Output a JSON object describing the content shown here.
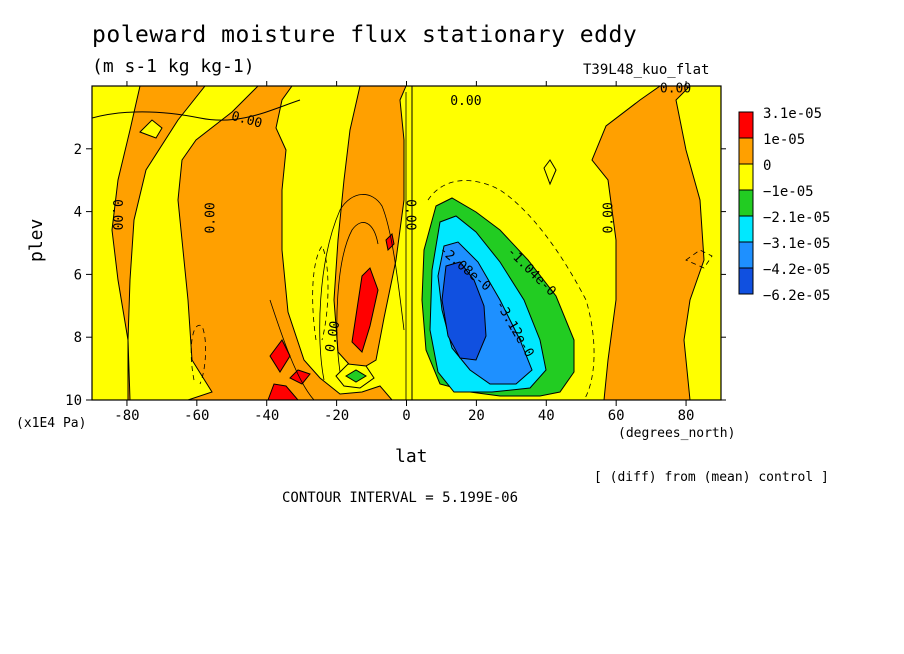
{
  "chart_data": {
    "type": "heatmap",
    "title": "poleward moisture flux stationary eddy",
    "units": "(m s-1 kg kg-1)",
    "run_label": "T39L48_kuo_flat",
    "xlabel": "lat",
    "xunits": "(degrees_north)",
    "ylabel": "plev",
    "yunits": "(x1E4 Pa)",
    "xlim": [
      -90,
      90
    ],
    "ylim": [
      10,
      0
    ],
    "xticks": [
      -80,
      -60,
      -40,
      -20,
      0,
      20,
      40,
      60,
      80
    ],
    "yticks": [
      2,
      4,
      6,
      8,
      10
    ],
    "note": "[ (diff) from (mean) control ]",
    "contour_interval": "CONTOUR INTERVAL = 5.199E-06",
    "legend": [
      {
        "label": "3.1e-05",
        "color": "#ff0000"
      },
      {
        "label": "1e-05",
        "color": "#ffa000"
      },
      {
        "label": "0",
        "color": "#ffa000"
      },
      {
        "label": "−1e-05",
        "color": "#ffff00"
      },
      {
        "label": "−2.1e-05",
        "color": "#22cc22"
      },
      {
        "label": "−3.1e-05",
        "color": "#00e8ff"
      },
      {
        "label": "−4.2e-05",
        "color": "#1e90ff"
      },
      {
        "label": "−6.2e-05",
        "color": "#1050e0"
      }
    ],
    "contour_labels": [
      {
        "text": "0.00",
        "lat": -46,
        "plev": 1.2,
        "rot": 15
      },
      {
        "text": "0.00",
        "lat": 17,
        "plev": 0.6,
        "rot": 0
      },
      {
        "text": "0.00",
        "lat": 77,
        "plev": 0.2,
        "rot": 0
      },
      {
        "text": "0.00",
        "lat": -84,
        "plev": 4.1,
        "rot": 90
      },
      {
        "text": "0.00",
        "lat": -55,
        "plev": 4.2,
        "rot": -90
      },
      {
        "text": "0.00",
        "lat": 0,
        "plev": 4.1,
        "rot": 90
      },
      {
        "text": "0.00",
        "lat": 59,
        "plev": 4.2,
        "rot": -90
      },
      {
        "text": "0.00",
        "lat": -20,
        "plev": 8.0,
        "rot": -80
      },
      {
        "text": "-2.08e-0",
        "lat": 16,
        "plev": 5.9,
        "rot": 40
      },
      {
        "text": "-1.04e-0",
        "lat": 35,
        "plev": 6.0,
        "rot": 45
      },
      {
        "text": "-3.12e-0",
        "lat": 30,
        "plev": 7.8,
        "rot": 60
      }
    ]
  },
  "palette": {
    "positive_high": "#ff0000",
    "positive": "#ffa000",
    "near_zero": "#ffff00",
    "neg_21": "#22cc22",
    "neg_31": "#00e8ff",
    "neg_42": "#1e90ff",
    "neg_62": "#1050e0"
  }
}
